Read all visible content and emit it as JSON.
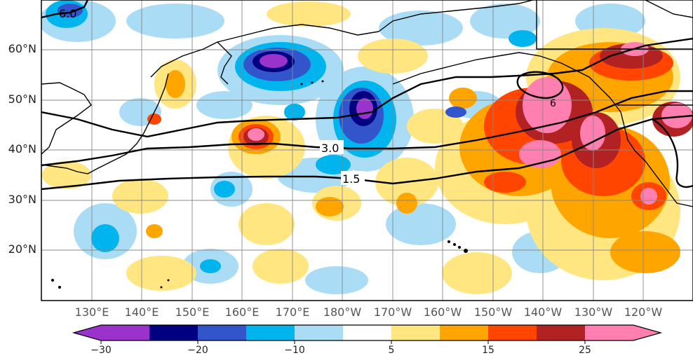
{
  "map": {
    "latitude_labels": [
      "60°N",
      "50°N",
      "40°N",
      "30°N",
      "20°N"
    ],
    "longitude_labels": [
      "130°E",
      "140°E",
      "150°E",
      "160°E",
      "170°E",
      "180°W",
      "170°W",
      "160°W",
      "150°W",
      "140°W",
      "130°W",
      "120°W"
    ],
    "contour_labels": [
      "6.0",
      "3.0",
      "1.5",
      "6"
    ]
  },
  "colorbar": {
    "tick_labels": [
      "−30",
      "−20",
      "−10",
      "5",
      "15",
      "25"
    ],
    "colors": [
      "#9933cc",
      "#000080",
      "#3355cc",
      "#00b4ee",
      "#aaddf5",
      "#ffffff",
      "#ffe680",
      "#ffa500",
      "#ff4500",
      "#b22222",
      "#ff7fb0"
    ]
  }
}
